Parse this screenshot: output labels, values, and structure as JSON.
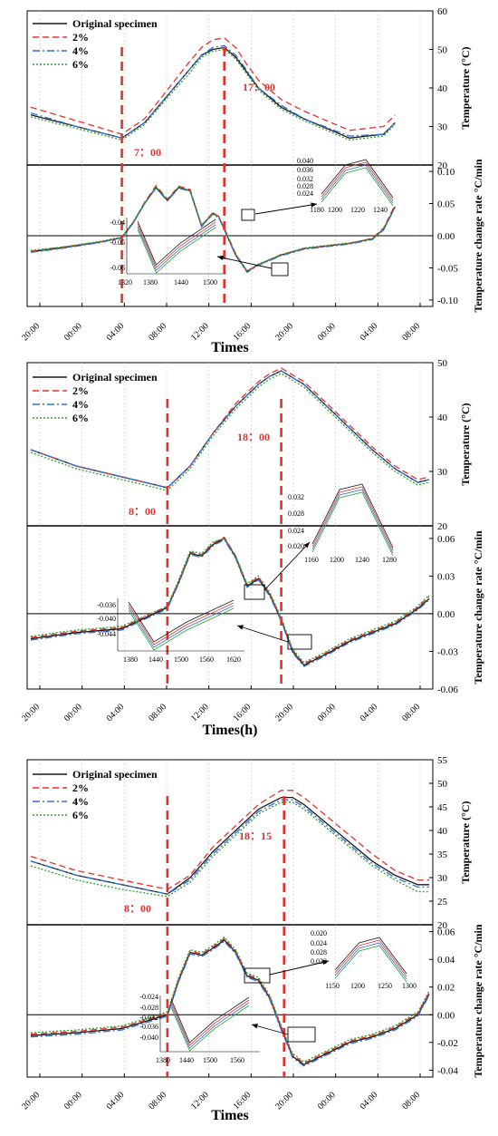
{
  "legend": [
    "Original specimen",
    "2%",
    "4%",
    "6%"
  ],
  "colors": {
    "orig": "#1a1a1a",
    "p2": "#e8302a",
    "p4": "#2f6fd8",
    "p6": "#2ca02c",
    "marker": "#e8302a"
  },
  "chart_data": [
    {
      "type": "line",
      "ylabel_top": "Temperature (°C)",
      "ylabel_bottom": "Temperature change rate °C/min",
      "xlabel": "Times",
      "time_ticks": [
        "20:00",
        "00:00",
        "04:00",
        "08:00",
        "12:00",
        "16:00",
        "20:00",
        "00:00",
        "04:00",
        "08:00"
      ],
      "top_ylim": [
        20,
        60
      ],
      "top_yticks": [
        20,
        30,
        40,
        50,
        60
      ],
      "bottom_ylim": [
        -0.11,
        0.11
      ],
      "bottom_yticks": [
        -0.1,
        -0.05,
        0.0,
        0.05,
        0.1
      ],
      "bottom_ytick_labels": [
        "-0.10",
        "-0.05",
        "0.00",
        "0.05",
        "0.10"
      ],
      "marker_labels": [
        "7：00",
        "17：00"
      ],
      "marker_x": [
        8,
        17
      ],
      "top_series": {
        "x": [
          0,
          4,
          8,
          10,
          12,
          14,
          15,
          16,
          17,
          18,
          19,
          20,
          22,
          24,
          28,
          31,
          32
        ],
        "orig": [
          33,
          30,
          27,
          31,
          38,
          45,
          48.5,
          50,
          50.5,
          48,
          44,
          40,
          35,
          32,
          27,
          28,
          31
        ],
        "p2": [
          35,
          31.5,
          28,
          32,
          39.5,
          47,
          50.5,
          52.5,
          53,
          50.5,
          46,
          42,
          37,
          34,
          29,
          30,
          33
        ],
        "p4": [
          33.5,
          30,
          27,
          31,
          38,
          45,
          48.5,
          50.5,
          51,
          48.5,
          44.5,
          40,
          35.5,
          32,
          27.5,
          28,
          31
        ],
        "p6": [
          32.5,
          29.5,
          26.5,
          30.5,
          37.5,
          44,
          48,
          49.5,
          50,
          47.5,
          43.5,
          39.5,
          34.5,
          31.5,
          26.5,
          27.5,
          30.5
        ]
      },
      "bottom_series": {
        "x": [
          0,
          3,
          6,
          8,
          9,
          10,
          11,
          12,
          13,
          14,
          15,
          16,
          16.5,
          17,
          18,
          19,
          20,
          22,
          24,
          28,
          30,
          31,
          32
        ],
        "orig": [
          -0.025,
          -0.018,
          -0.01,
          -0.003,
          0.02,
          0.05,
          0.075,
          0.055,
          0.075,
          0.07,
          0.015,
          0.035,
          0.03,
          0.01,
          -0.03,
          -0.055,
          -0.045,
          -0.03,
          -0.02,
          -0.012,
          -0.005,
          0.01,
          0.045
        ],
        "p2": [
          -0.024,
          -0.017,
          -0.01,
          -0.004,
          0.02,
          0.052,
          0.078,
          0.057,
          0.077,
          0.072,
          0.016,
          0.036,
          0.03,
          0.012,
          -0.028,
          -0.056,
          -0.045,
          -0.029,
          -0.02,
          -0.012,
          -0.004,
          0.012,
          0.048
        ],
        "p4": [
          -0.026,
          -0.019,
          -0.011,
          -0.003,
          0.021,
          0.05,
          0.074,
          0.054,
          0.074,
          0.069,
          0.014,
          0.034,
          0.029,
          0.009,
          -0.031,
          -0.057,
          -0.046,
          -0.031,
          -0.021,
          -0.013,
          -0.006,
          0.009,
          0.044
        ],
        "p6": [
          -0.023,
          -0.017,
          -0.009,
          -0.002,
          0.022,
          0.051,
          0.076,
          0.056,
          0.076,
          0.07,
          0.017,
          0.033,
          0.028,
          0.011,
          -0.029,
          -0.055,
          -0.044,
          -0.03,
          -0.019,
          -0.011,
          -0.005,
          0.011,
          0.046
        ]
      },
      "inset_upper": {
        "xticks": [
          "1180",
          "1200",
          "1220",
          "1240"
        ],
        "yticks": [
          "0.024",
          "0.028",
          "0.032",
          "0.036",
          "0.040"
        ]
      },
      "inset_lower": {
        "xticks": [
          "1320",
          "1380",
          "1440",
          "1500"
        ],
        "yticks": [
          "-0.04",
          "-0.05",
          "-0.06"
        ]
      }
    },
    {
      "type": "line",
      "ylabel_top": "Temperature (°C)",
      "ylabel_bottom": "Temperature change rate °C/min",
      "xlabel": "Times(h)",
      "time_ticks": [
        "20:00",
        "00:00",
        "04:00",
        "08:00",
        "12:00",
        "16:00",
        "20:00",
        "00:00",
        "04:00",
        "08:00"
      ],
      "top_ylim": [
        20,
        50
      ],
      "top_yticks": [
        20,
        30,
        40,
        50
      ],
      "bottom_ylim": [
        -0.06,
        0.07
      ],
      "bottom_yticks": [
        -0.06,
        -0.03,
        0.0,
        0.03,
        0.06
      ],
      "bottom_ytick_labels": [
        "-0.06",
        "-0.03",
        "0.00",
        "0.03",
        "0.06"
      ],
      "marker_labels": [
        "8：00",
        "18：00"
      ],
      "marker_x": [
        12,
        22
      ],
      "top_series": {
        "x": [
          0,
          4,
          8,
          12,
          14,
          16,
          18,
          20,
          21,
          22,
          24,
          26,
          28,
          30,
          32,
          34,
          35
        ],
        "orig": [
          34,
          31,
          29,
          27,
          31,
          37,
          42,
          46,
          47.5,
          48.5,
          46,
          42,
          38,
          34,
          30.5,
          28,
          28.5
        ],
        "p2": [
          34,
          31,
          29,
          27,
          31,
          37,
          42.5,
          46.5,
          48,
          49,
          46.5,
          42.5,
          38.5,
          34.5,
          31,
          28.5,
          29
        ],
        "p4": [
          34,
          31,
          29,
          27,
          31,
          37,
          42,
          46,
          47.5,
          48.5,
          46,
          42,
          38,
          34,
          30.5,
          28,
          28.5
        ],
        "p6": [
          33.5,
          30.5,
          28.5,
          26.5,
          30.5,
          36.5,
          41.5,
          45.5,
          47,
          48,
          45.5,
          41.5,
          37.5,
          33.5,
          30,
          27.5,
          28
        ]
      },
      "bottom_series": {
        "x": [
          0,
          4,
          8,
          12,
          13,
          14,
          15,
          16,
          17,
          18,
          19,
          20,
          21,
          22,
          23,
          24,
          26,
          28,
          30,
          32,
          34,
          35
        ],
        "orig": [
          -0.02,
          -0.015,
          -0.012,
          0.005,
          0.025,
          0.048,
          0.046,
          0.055,
          0.06,
          0.045,
          0.022,
          0.028,
          0.015,
          -0.005,
          -0.03,
          -0.041,
          -0.032,
          -0.022,
          -0.015,
          -0.008,
          0.004,
          0.012
        ],
        "p2": [
          -0.019,
          -0.014,
          -0.011,
          0.006,
          0.026,
          0.049,
          0.047,
          0.056,
          0.061,
          0.046,
          0.023,
          0.029,
          0.016,
          -0.004,
          -0.029,
          -0.04,
          -0.031,
          -0.021,
          -0.014,
          -0.007,
          0.005,
          0.014
        ],
        "p4": [
          -0.021,
          -0.016,
          -0.013,
          0.004,
          0.024,
          0.047,
          0.045,
          0.054,
          0.059,
          0.044,
          0.021,
          0.027,
          0.014,
          -0.006,
          -0.031,
          -0.042,
          -0.033,
          -0.023,
          -0.016,
          -0.009,
          0.003,
          0.011
        ],
        "p6": [
          -0.018,
          -0.013,
          -0.01,
          0.006,
          0.027,
          0.05,
          0.048,
          0.057,
          0.06,
          0.046,
          0.024,
          0.03,
          0.017,
          -0.003,
          -0.028,
          -0.039,
          -0.03,
          -0.02,
          -0.013,
          -0.006,
          0.006,
          0.015
        ]
      },
      "inset_upper": {
        "xticks": [
          "1160",
          "1200",
          "1240",
          "1280"
        ],
        "yticks": [
          "0.020",
          "0.024",
          "0.028",
          "0.032"
        ]
      },
      "inset_lower": {
        "xticks": [
          "1380",
          "1440",
          "1500",
          "1560",
          "1620"
        ],
        "yticks": [
          "-0.036",
          "-0.040",
          "-0.044"
        ]
      }
    },
    {
      "type": "line",
      "ylabel_top": "Temperature (°C)",
      "ylabel_bottom": "Temperature change rate °C/min",
      "xlabel": "Times",
      "time_ticks": [
        "20:00",
        "00:00",
        "04:00",
        "08:00",
        "12:00",
        "16:00",
        "20:00",
        "00:00",
        "04:00",
        "08:00"
      ],
      "top_ylim": [
        20,
        55
      ],
      "top_yticks": [
        20,
        25,
        30,
        35,
        40,
        45,
        50,
        55
      ],
      "bottom_ylim": [
        -0.045,
        0.065
      ],
      "bottom_yticks": [
        -0.04,
        -0.02,
        0.0,
        0.02,
        0.04,
        0.06
      ],
      "bottom_ytick_labels": [
        "-0.04",
        "-0.02",
        "0.00",
        "0.02",
        "0.04",
        "0.06"
      ],
      "marker_labels": [
        "8：00",
        "18：15"
      ],
      "marker_x": [
        12,
        22.25
      ],
      "top_series": {
        "x": [
          0,
          4,
          8,
          12,
          14,
          16,
          18,
          20,
          22,
          23,
          24,
          26,
          28,
          30,
          32,
          34,
          35
        ],
        "orig": [
          33.5,
          30.5,
          28.5,
          26.5,
          30,
          35.5,
          40,
          44.5,
          47,
          47,
          45.5,
          41.5,
          37.5,
          33.5,
          30.5,
          28.5,
          28.5
        ],
        "p2": [
          34.5,
          31.5,
          29.5,
          27.5,
          30.5,
          36.5,
          41,
          45.5,
          48.5,
          48.5,
          47,
          43,
          39,
          35,
          31.5,
          29.5,
          29.5
        ],
        "p4": [
          33.5,
          30.5,
          28.5,
          26.5,
          29.5,
          35,
          39.5,
          44,
          46.5,
          46.5,
          45,
          41,
          37,
          33,
          30,
          28,
          28
        ],
        "p6": [
          32.5,
          29.5,
          27.5,
          26,
          29,
          34.5,
          39,
          43.5,
          46,
          46,
          44.5,
          40.5,
          36.5,
          32.5,
          29.5,
          27,
          27
        ]
      },
      "bottom_series": {
        "x": [
          0,
          4,
          8,
          12,
          13,
          14,
          15,
          16,
          17,
          18,
          19,
          20,
          21,
          22,
          23,
          24,
          26,
          28,
          30,
          32,
          34,
          35
        ],
        "orig": [
          -0.015,
          -0.013,
          -0.01,
          0.0,
          0.025,
          0.045,
          0.043,
          0.048,
          0.054,
          0.045,
          0.028,
          0.025,
          0.012,
          -0.01,
          -0.03,
          -0.036,
          -0.028,
          -0.02,
          -0.016,
          -0.01,
          0.0,
          0.015
        ],
        "p2": [
          -0.014,
          -0.012,
          -0.009,
          0.001,
          0.026,
          0.046,
          0.044,
          0.049,
          0.055,
          0.046,
          0.029,
          0.026,
          0.013,
          -0.009,
          -0.029,
          -0.035,
          -0.027,
          -0.019,
          -0.015,
          -0.009,
          0.001,
          0.016
        ],
        "p4": [
          -0.016,
          -0.014,
          -0.011,
          -0.001,
          0.024,
          0.044,
          0.042,
          0.047,
          0.053,
          0.044,
          0.027,
          0.024,
          0.011,
          -0.011,
          -0.031,
          -0.037,
          -0.029,
          -0.021,
          -0.017,
          -0.011,
          -0.001,
          0.014
        ],
        "p6": [
          -0.013,
          -0.011,
          -0.008,
          0.002,
          0.027,
          0.047,
          0.045,
          0.05,
          0.056,
          0.047,
          0.03,
          0.027,
          0.014,
          -0.008,
          -0.028,
          -0.034,
          -0.026,
          -0.018,
          -0.014,
          -0.008,
          0.002,
          0.017
        ]
      },
      "inset_upper": {
        "xticks": [
          "1150",
          "1200",
          "1250",
          "1300"
        ],
        "yticks": [
          "0.020",
          "0.024",
          "0.028",
          "0.032"
        ]
      },
      "inset_lower": {
        "xticks": [
          "1380",
          "1440",
          "1500",
          "1560"
        ],
        "yticks": [
          "-0.024",
          "-0.028",
          "-0.032",
          "-0.036",
          "-0.040"
        ]
      }
    }
  ]
}
